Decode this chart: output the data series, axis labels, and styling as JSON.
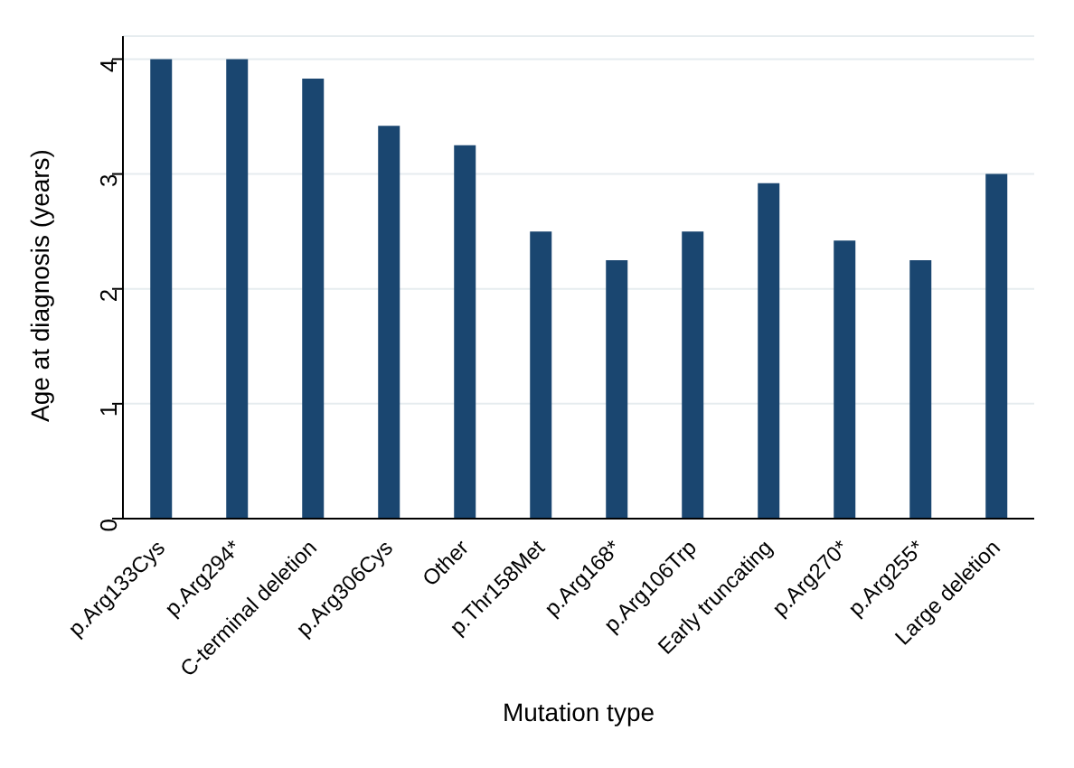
{
  "chart_data": {
    "type": "bar",
    "xlabel": "Mutation type",
    "ylabel": "Age at diagnosis (years)",
    "categories": [
      "p.Arg133Cys",
      "p.Arg294*",
      "C-terminal deletion",
      "p.Arg306Cys",
      "Other",
      "p.Thr158Met",
      "p.Arg168*",
      "p.Arg106Trp",
      "Early truncating",
      "p.Arg270*",
      "p.Arg255*",
      "Large deletion"
    ],
    "values": [
      4,
      4,
      3.83,
      3.42,
      3.25,
      2.5,
      2.25,
      2.5,
      2.92,
      2.42,
      2.25,
      3
    ],
    "color": "#1a4670",
    "ylim": [
      0,
      4.2
    ],
    "yticks": [
      0,
      1,
      2,
      3,
      4
    ],
    "grid": "y"
  }
}
